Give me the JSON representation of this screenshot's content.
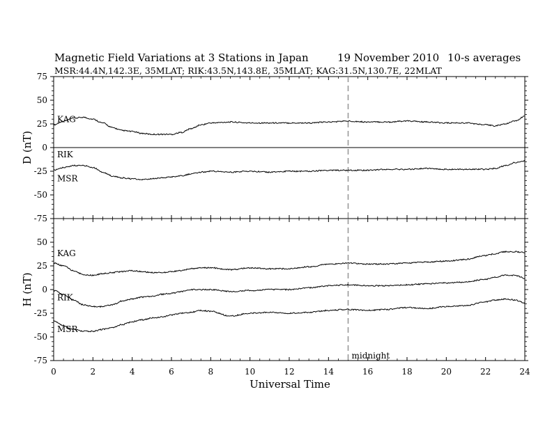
{
  "header": {
    "title": "Magnetic Field Variations at 3 Stations in Japan",
    "date": "19 November 2010",
    "averaging": "10-s averages",
    "stations_line": "MSR:44.4N,142.3E, 35MLAT;  RIK:43.5N,143.8E, 35MLAT;  KAG:31.5N,130.7E, 22MLAT"
  },
  "chart_data": [
    {
      "type": "line",
      "panel": "top",
      "ylabel": "D (nT)",
      "xlabel": "",
      "xlim": [
        0,
        24
      ],
      "ylim": [
        -75,
        75
      ],
      "yticks": [
        75,
        50,
        25,
        0,
        -25,
        -50,
        -75
      ],
      "xticks": [
        0,
        2,
        4,
        6,
        8,
        10,
        12,
        14,
        16,
        18,
        20,
        22,
        24
      ],
      "grid": false,
      "series": [
        {
          "name": "KAG",
          "x": [
            0,
            0.5,
            1,
            1.5,
            2,
            2.5,
            3,
            3.5,
            4,
            4.5,
            5,
            5.5,
            6,
            6.5,
            7,
            7.5,
            8,
            9,
            10,
            11,
            12,
            13,
            14,
            15,
            16,
            17,
            18,
            19,
            20,
            21,
            22,
            22.5,
            23,
            23.5,
            24
          ],
          "values": [
            24,
            28,
            31,
            32,
            30,
            26,
            21,
            18,
            17,
            15,
            14,
            14,
            14,
            16,
            20,
            24,
            26,
            27,
            26,
            26,
            26,
            26,
            27,
            28,
            27,
            27,
            28,
            27,
            26,
            26,
            24,
            23,
            25,
            28,
            33
          ]
        },
        {
          "name": "RIK",
          "x": [
            0,
            24
          ],
          "values": [
            0,
            0
          ]
        },
        {
          "name": "MSR",
          "x": [
            0,
            0.5,
            1,
            1.5,
            2,
            2.5,
            3,
            3.5,
            4,
            4.5,
            5,
            5.5,
            6,
            6.5,
            7,
            7.5,
            8,
            9,
            10,
            11,
            12,
            13,
            14,
            15,
            16,
            17,
            18,
            19,
            20,
            21,
            22,
            22.5,
            23,
            23.5,
            24
          ],
          "values": [
            -24,
            -21,
            -19,
            -19,
            -21,
            -26,
            -30,
            -32,
            -33,
            -34,
            -33,
            -32,
            -31,
            -30,
            -28,
            -26,
            -25,
            -26,
            -25,
            -26,
            -25,
            -25,
            -24,
            -24,
            -24,
            -23,
            -23,
            -22,
            -23,
            -23,
            -23,
            -22,
            -19,
            -16,
            -14
          ]
        }
      ]
    },
    {
      "type": "line",
      "panel": "bottom",
      "ylabel": "H (nT)",
      "xlabel": "Universal Time",
      "xlim": [
        0,
        24
      ],
      "ylim": [
        -75,
        75
      ],
      "yticks": [
        75,
        50,
        25,
        0,
        -25,
        -50,
        -75
      ],
      "xticks": [
        0,
        2,
        4,
        6,
        8,
        10,
        12,
        14,
        16,
        18,
        20,
        22,
        24
      ],
      "grid": false,
      "annotation": {
        "text": "midnight",
        "x": 15
      },
      "series": [
        {
          "name": "KAG",
          "x": [
            0,
            0.5,
            1,
            1.5,
            2,
            2.5,
            3,
            3.5,
            4,
            4.5,
            5,
            5.5,
            6,
            6.5,
            7,
            7.5,
            8,
            9,
            10,
            11,
            12,
            13,
            14,
            15,
            16,
            17,
            18,
            19,
            20,
            21,
            22,
            22.5,
            23,
            23.5,
            24
          ],
          "values": [
            28,
            25,
            20,
            16,
            15,
            17,
            18,
            19,
            20,
            19,
            18,
            18,
            19,
            20,
            22,
            23,
            23,
            21,
            23,
            22,
            22,
            24,
            27,
            28,
            27,
            27,
            28,
            29,
            30,
            32,
            36,
            38,
            40,
            40,
            39
          ]
        },
        {
          "name": "RIK",
          "x": [
            0,
            0.5,
            1,
            1.5,
            2,
            2.5,
            3,
            3.5,
            4,
            4.5,
            5,
            5.5,
            6,
            6.5,
            7,
            7.5,
            8,
            9,
            10,
            11,
            12,
            13,
            14,
            15,
            16,
            17,
            18,
            19,
            20,
            21,
            22,
            22.5,
            23,
            23.5,
            24
          ],
          "values": [
            -1,
            -5,
            -11,
            -16,
            -18,
            -18,
            -16,
            -12,
            -10,
            -8,
            -7,
            -5,
            -4,
            -2,
            0,
            0,
            0,
            -2,
            -1,
            0,
            0,
            2,
            4,
            5,
            4,
            4,
            5,
            6,
            7,
            8,
            11,
            13,
            15,
            15,
            12
          ]
        },
        {
          "name": "MSR",
          "x": [
            0,
            0.5,
            1,
            1.5,
            2,
            2.5,
            3,
            3.5,
            4,
            4.5,
            5,
            5.5,
            6,
            6.5,
            7,
            7.5,
            8,
            9,
            10,
            11,
            12,
            13,
            14,
            15,
            16,
            17,
            18,
            19,
            20,
            21,
            22,
            22.5,
            23,
            23.5,
            24
          ],
          "values": [
            -33,
            -38,
            -42,
            -44,
            -44,
            -42,
            -40,
            -37,
            -34,
            -32,
            -30,
            -29,
            -27,
            -25,
            -24,
            -22,
            -23,
            -28,
            -25,
            -24,
            -25,
            -24,
            -22,
            -21,
            -22,
            -21,
            -19,
            -20,
            -18,
            -17,
            -13,
            -11,
            -10,
            -11,
            -14
          ]
        }
      ]
    }
  ]
}
